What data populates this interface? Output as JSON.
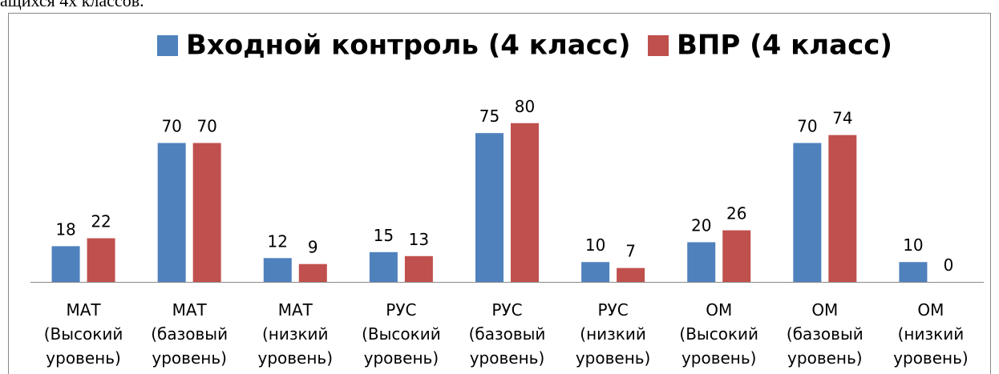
{
  "caption": "ащихся 4х классов.",
  "chart_data": {
    "type": "bar",
    "categories": [
      "МАТ\n(Высокий\nуровень)",
      "МАТ\n(базовый\nуровень)",
      "МАТ\n(низкий\nуровень)",
      "РУС\n(Высокий\nуровень)",
      "РУС\n(базовый\nуровень)",
      "РУС\n(низкий\nуровень)",
      "ОМ\n(Высокий\nуровень)",
      "ОМ\n(базовый\nуровень)",
      "ОМ\n(низкий\nуровень)"
    ],
    "series": [
      {
        "name": "Входной контроль (4 класс)",
        "color": "#4f81bd",
        "values": [
          18,
          70,
          12,
          15,
          75,
          10,
          20,
          70,
          10
        ]
      },
      {
        "name": "ВПР (4 класс)",
        "color": "#c0504d",
        "values": [
          22,
          70,
          9,
          13,
          80,
          7,
          26,
          74,
          0
        ]
      }
    ],
    "ylim": [
      0,
      90
    ],
    "legend": "top"
  }
}
